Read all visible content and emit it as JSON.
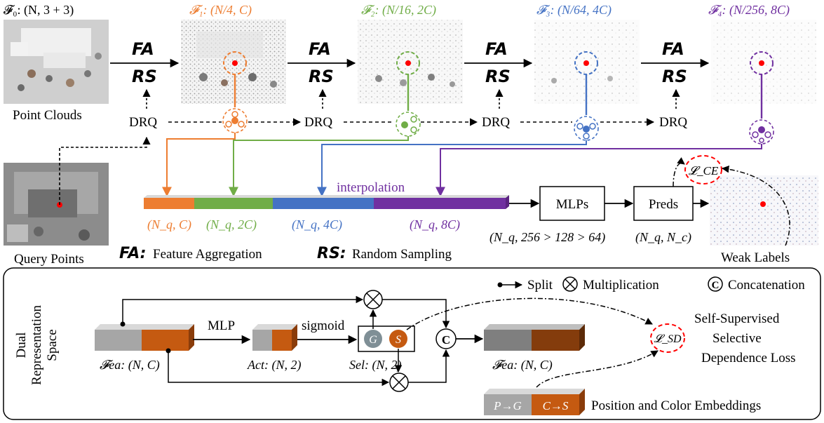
{
  "top_row": {
    "stages": [
      {
        "math": "𝓕₀: (N, 3 + 3)",
        "color": "#000000"
      },
      {
        "math": "𝓕₁: (N/4, C)",
        "color": "#ed7d31"
      },
      {
        "math": "𝓕₂: (N/16, 2C)",
        "color": "#70ad47"
      },
      {
        "math": "𝓕₃: (N/64, 4C)",
        "color": "#4472c4"
      },
      {
        "math": "𝓕₄: (N/256, 8C)",
        "color": "#7030a0"
      }
    ],
    "point_clouds_label": "Point Clouds",
    "query_points_label": "Query Points",
    "op_top": "FA",
    "op_bottom": "RS",
    "drq_label": "DRQ"
  },
  "feature_bar": {
    "interpolation_text": "interpolation",
    "segments": [
      {
        "label": "(N_q, C)",
        "color": "#ed7d31"
      },
      {
        "label": "(N_q, 2C)",
        "color": "#70ad47"
      },
      {
        "label": "(N_q, 4C)",
        "color": "#4472c4"
      },
      {
        "label": "(N_q, 8C)",
        "color": "#7030a0"
      }
    ],
    "mlps_label": "MLPs",
    "preds_label": "Preds",
    "mlps_dims": "(N_q, 256 > 128 > 64)",
    "preds_dims": "(N_q, N_c)",
    "loss_ce": "𝓛_CE",
    "weak_labels": "Weak Labels"
  },
  "legend": {
    "fa_symbol": "FA:",
    "fa_text": "Feature Aggregation",
    "rs_symbol": "RS:",
    "rs_text": "Random Sampling"
  },
  "bottom_panel": {
    "side_title_line1": "Dual",
    "side_title_line2": "Representation",
    "side_title_line3": "Space",
    "split_label": "Split",
    "mult_label": "Multiplication",
    "concat_label": "Concatenation",
    "mlp_label": "MLP",
    "sigmoid_label": "sigmoid",
    "fea_in_label": "𝓕ea: (N, C)",
    "act_label": "Act: (N, 2)",
    "sel_label": "Sel: (N, 2)",
    "fea_out_label": "𝓕ea: (N, C)",
    "g_letter": "G",
    "s_letter": "S",
    "c_letter": "C",
    "loss_sd": "𝓛_SD",
    "ssl_line1": "Self-Supervised",
    "ssl_line2": "Selective",
    "ssl_line3": "Dependence Loss",
    "pg_label": "P→G",
    "cs_label": "C→S",
    "embed_text": "Position and Color Embeddings"
  },
  "colors": {
    "orange": "#ed7d31",
    "green": "#70ad47",
    "blue": "#4472c4",
    "purple": "#7030a0",
    "dark_orange": "#c55a11",
    "gray": "#a6a6a6",
    "red": "#ff0000"
  }
}
